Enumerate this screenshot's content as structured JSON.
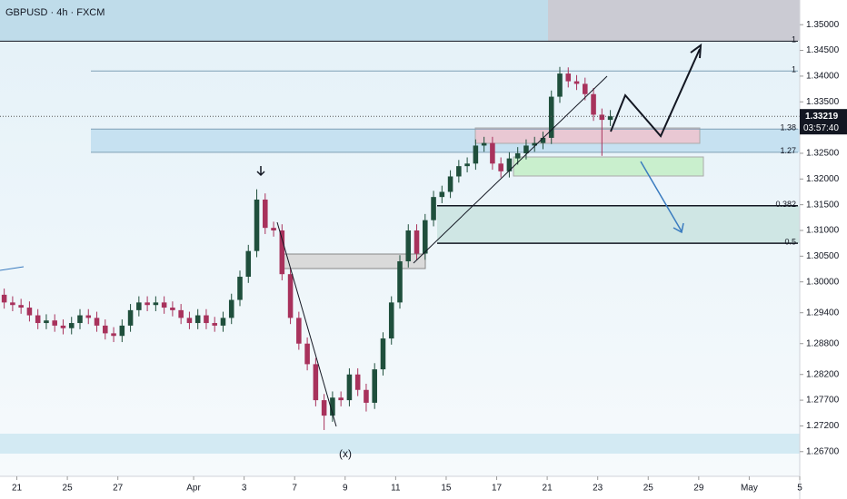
{
  "chart_data": {
    "type": "candlestick",
    "title": "GBPUSD · 4h · FXCM",
    "up_color": "#1f4f3c",
    "down_color": "#a8325c",
    "xlim": [
      0,
      95
    ],
    "ylim": [
      1.2622,
      1.3548
    ],
    "xticks": [
      {
        "value": 2,
        "label": "21"
      },
      {
        "value": 8,
        "label": "25"
      },
      {
        "value": 14,
        "label": "27"
      },
      {
        "value": 23,
        "label": "Apr"
      },
      {
        "value": 29,
        "label": "3"
      },
      {
        "value": 35,
        "label": "7"
      },
      {
        "value": 41,
        "label": "9"
      },
      {
        "value": 47,
        "label": "11"
      },
      {
        "value": 53,
        "label": "15"
      },
      {
        "value": 59,
        "label": "17"
      },
      {
        "value": 65,
        "label": "21"
      },
      {
        "value": 71,
        "label": "23"
      },
      {
        "value": 77,
        "label": "25"
      },
      {
        "value": 83,
        "label": "29"
      },
      {
        "value": 89,
        "label": "May"
      },
      {
        "value": 95,
        "label": "5"
      }
    ],
    "yticks": [
      {
        "value": 1.35,
        "label": "1.35000"
      },
      {
        "value": 1.345,
        "label": "1.34500"
      },
      {
        "value": 1.34,
        "label": "1.34000"
      },
      {
        "value": 1.335,
        "label": "1.33500"
      },
      {
        "value": 1.325,
        "label": "1.32500"
      },
      {
        "value": 1.32,
        "label": "1.32000"
      },
      {
        "value": 1.315,
        "label": "1.31500"
      },
      {
        "value": 1.31,
        "label": "1.31000"
      },
      {
        "value": 1.305,
        "label": "1.30500"
      },
      {
        "value": 1.3,
        "label": "1.30000"
      },
      {
        "value": 1.294,
        "label": "1.29400"
      },
      {
        "value": 1.288,
        "label": "1.28800"
      },
      {
        "value": 1.282,
        "label": "1.28200"
      },
      {
        "value": 1.277,
        "label": "1.27700"
      },
      {
        "value": 1.272,
        "label": "1.27200"
      },
      {
        "value": 1.267,
        "label": "1.26700"
      }
    ],
    "last_price": {
      "value": 1.33219,
      "label": "1.33219"
    },
    "countdown": "03:57:40",
    "levels": [
      {
        "label": "1",
        "price": 1.3468
      },
      {
        "label": "1",
        "price": 1.341
      },
      {
        "label": "1.38",
        "price": 1.3297
      },
      {
        "label": "1.27",
        "price": 1.3252
      },
      {
        "label": "0.382",
        "price": 1.3148
      },
      {
        "label": "0.5",
        "price": 1.3075
      }
    ],
    "annotation": "(x)",
    "open": [
      1.2975,
      1.296,
      1.2955,
      1.295,
      1.2935,
      1.292,
      1.2925,
      1.2915,
      1.291,
      1.292,
      1.2935,
      1.293,
      1.2915,
      1.29,
      1.2895,
      1.2915,
      1.2945,
      1.296,
      1.2955,
      1.296,
      1.295,
      1.2945,
      1.293,
      1.292,
      1.2935,
      1.292,
      1.2915,
      1.293,
      1.2965,
      1.301,
      1.306,
      1.316,
      1.3105,
      1.31,
      1.3015,
      1.293,
      1.288,
      1.284,
      1.277,
      1.274,
      1.2775,
      1.277,
      1.282,
      1.279,
      1.2765,
      1.283,
      1.289,
      1.296,
      1.304,
      1.31,
      1.3055,
      1.312,
      1.3165,
      1.3175,
      1.3205,
      1.3225,
      1.323,
      1.3265,
      1.327,
      1.323,
      1.3215,
      1.324,
      1.325,
      1.3265,
      1.327,
      1.328,
      1.336,
      1.3405,
      1.339,
      1.3385,
      1.3365,
      1.3325,
      1.3315
    ],
    "high": [
      1.2987,
      1.2972,
      1.2967,
      1.2962,
      1.2947,
      1.2937,
      1.2937,
      1.2927,
      1.2932,
      1.2947,
      1.2947,
      1.2942,
      1.2927,
      1.2912,
      1.2927,
      1.2957,
      1.2972,
      1.2972,
      1.2972,
      1.2972,
      1.2962,
      1.2957,
      1.2942,
      1.2947,
      1.2947,
      1.2932,
      1.2942,
      1.2977,
      1.3022,
      1.3072,
      1.318,
      1.3172,
      1.3117,
      1.3112,
      1.3027,
      1.2942,
      1.2892,
      1.2852,
      1.2782,
      1.2787,
      1.2787,
      1.2832,
      1.2832,
      1.2802,
      1.2842,
      1.2902,
      1.2972,
      1.3052,
      1.3112,
      1.3112,
      1.3132,
      1.3177,
      1.3187,
      1.3217,
      1.3237,
      1.3242,
      1.3277,
      1.3282,
      1.3282,
      1.3242,
      1.3252,
      1.3262,
      1.3277,
      1.3282,
      1.3292,
      1.3372,
      1.3418,
      1.3417,
      1.3402,
      1.3397,
      1.3377,
      1.3337,
      1.3334
    ],
    "low": [
      1.2948,
      1.2943,
      1.2938,
      1.2923,
      1.2908,
      1.2908,
      1.2903,
      1.2898,
      1.2898,
      1.2908,
      1.2918,
      1.2903,
      1.2888,
      1.2883,
      1.2883,
      1.2903,
      1.2933,
      1.2943,
      1.2943,
      1.2938,
      1.2933,
      1.2918,
      1.2908,
      1.2908,
      1.2908,
      1.2903,
      1.2903,
      1.2918,
      1.2953,
      1.2998,
      1.3048,
      1.3093,
      1.3088,
      1.3003,
      1.2918,
      1.2868,
      1.2828,
      1.2758,
      1.2712,
      1.2728,
      1.2758,
      1.2758,
      1.2778,
      1.2748,
      1.2753,
      1.2818,
      1.2878,
      1.2948,
      1.3028,
      1.3043,
      1.3043,
      1.3108,
      1.3153,
      1.3163,
      1.3193,
      1.3213,
      1.3218,
      1.3253,
      1.3218,
      1.3203,
      1.3203,
      1.3228,
      1.3238,
      1.3253,
      1.3258,
      1.3268,
      1.3348,
      1.3378,
      1.3373,
      1.3353,
      1.3313,
      1.3245,
      1.3303
    ],
    "close": [
      1.296,
      1.2955,
      1.295,
      1.2935,
      1.292,
      1.2925,
      1.2915,
      1.291,
      1.292,
      1.2935,
      1.293,
      1.2915,
      1.29,
      1.2895,
      1.2915,
      1.2945,
      1.296,
      1.2955,
      1.296,
      1.295,
      1.2945,
      1.293,
      1.292,
      1.2935,
      1.292,
      1.2915,
      1.293,
      1.2965,
      1.301,
      1.306,
      1.316,
      1.3105,
      1.31,
      1.3015,
      1.293,
      1.288,
      1.284,
      1.277,
      1.274,
      1.2775,
      1.277,
      1.282,
      1.279,
      1.2765,
      1.283,
      1.289,
      1.296,
      1.304,
      1.31,
      1.3055,
      1.312,
      1.3165,
      1.3175,
      1.3205,
      1.3225,
      1.323,
      1.3265,
      1.327,
      1.323,
      1.3215,
      1.324,
      1.325,
      1.3265,
      1.327,
      1.328,
      1.336,
      1.3405,
      1.339,
      1.3385,
      1.3365,
      1.3325,
      1.3315,
      1.3322
    ]
  }
}
